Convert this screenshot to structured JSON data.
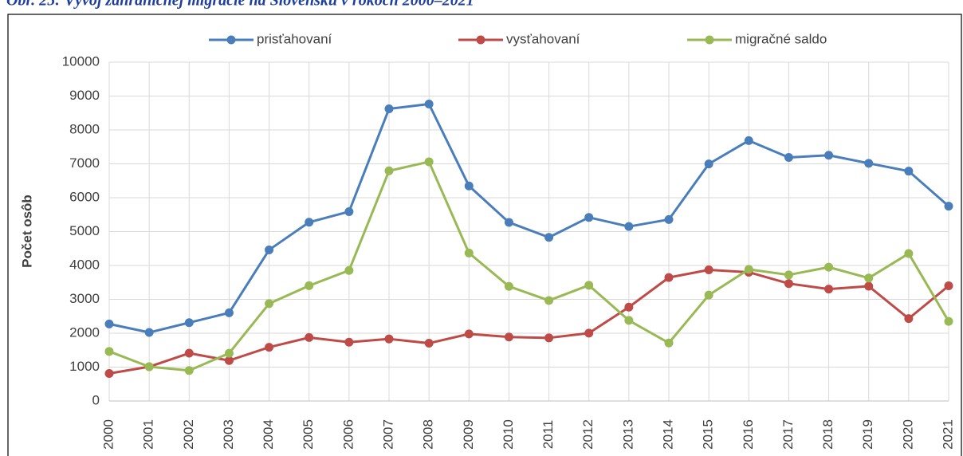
{
  "chart_data": {
    "type": "line",
    "title": "Obr. 25: Vývoj zahraničnej migrácie na Slovensku v rokoch 2000–2021",
    "y_label": "Počet osôb",
    "categories": [
      "2000",
      "2001",
      "2002",
      "2003",
      "2004",
      "2005",
      "2006",
      "2007",
      "2008",
      "2009",
      "2010",
      "2011",
      "2012",
      "2013",
      "2014",
      "2015",
      "2016",
      "2017",
      "2018",
      "2019",
      "2020",
      "2021"
    ],
    "series": [
      {
        "name": "prisťahovaní",
        "color": "#4a7ebb",
        "values": [
          2274,
          2023,
          2312,
          2603,
          4460,
          5276,
          5589,
          8624,
          8765,
          6346,
          5272,
          4829,
          5419,
          5149,
          5357,
          6997,
          7686,
          7188,
          7253,
          7016,
          6784,
          5750
        ]
      },
      {
        "name": "vysťahovaní",
        "color": "#be4b48",
        "values": [
          811,
          1011,
          1411,
          1194,
          1586,
          1873,
          1735,
          1831,
          1705,
          1979,
          1889,
          1863,
          2003,
          2770,
          3644,
          3870,
          3801,
          3466,
          3303,
          3388,
          2432,
          3400
        ]
      },
      {
        "name": "migračné saldo",
        "color": "#98b954",
        "values": [
          1463,
          1012,
          901,
          1409,
          2874,
          3403,
          3854,
          6793,
          7060,
          4367,
          3383,
          2966,
          3416,
          2379,
          1713,
          3127,
          3885,
          3722,
          3950,
          3628,
          4352,
          2350
        ]
      }
    ],
    "ylim": [
      0,
      10000
    ],
    "yticks": [
      0,
      1000,
      2000,
      3000,
      4000,
      5000,
      6000,
      7000,
      8000,
      9000,
      10000
    ],
    "grid": true,
    "legend": "top"
  }
}
